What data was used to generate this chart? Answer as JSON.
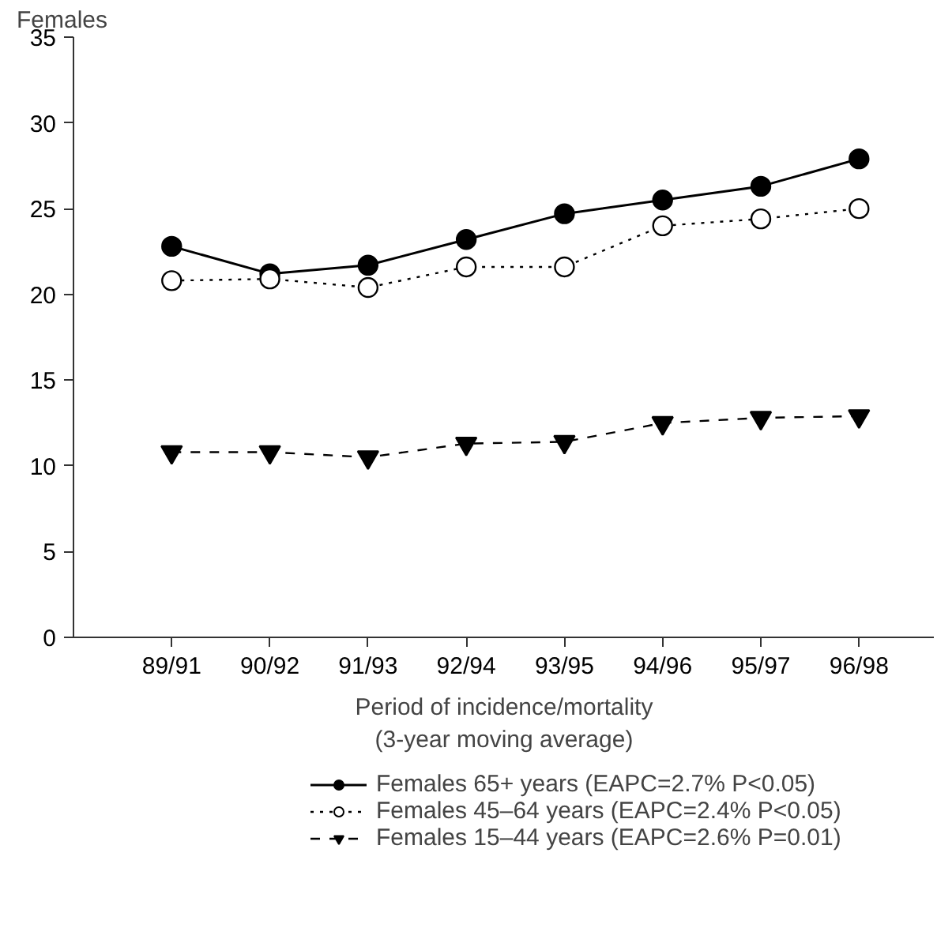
{
  "chart_data": {
    "type": "line",
    "ylabel": "Females",
    "xlabel": "Period of incidence/mortality\n(3-year moving average)",
    "categories": [
      "89/91",
      "90/92",
      "91/93",
      "92/94",
      "93/95",
      "94/96",
      "95/97",
      "96/98"
    ],
    "ylim": [
      0,
      35
    ],
    "yticks": [
      0,
      5,
      10,
      15,
      20,
      25,
      30,
      35
    ],
    "grid": false,
    "legend": "bottom",
    "series": [
      {
        "name": "Females 65+ years (EAPC=2.7% P<0.05)",
        "color": "#000000",
        "marker": "circle",
        "line_style": "solid",
        "values": [
          22.8,
          21.2,
          21.7,
          23.2,
          24.7,
          25.5,
          26.3,
          27.9
        ]
      },
      {
        "name": "Females 45–64 years (EAPC=2.4% P<0.05)",
        "color": "#000000",
        "marker": "circle_open",
        "line_style": "dotted",
        "values": [
          20.8,
          20.9,
          20.4,
          21.6,
          21.6,
          24.0,
          24.4,
          25.0
        ]
      },
      {
        "name": "Females 15–44 years (EAPC=2.6% P=0.01)",
        "color": "#000000",
        "marker": "triangle",
        "line_style": "dashed",
        "values": [
          10.8,
          10.8,
          10.5,
          11.3,
          11.4,
          12.5,
          12.8,
          12.9
        ]
      }
    ]
  }
}
